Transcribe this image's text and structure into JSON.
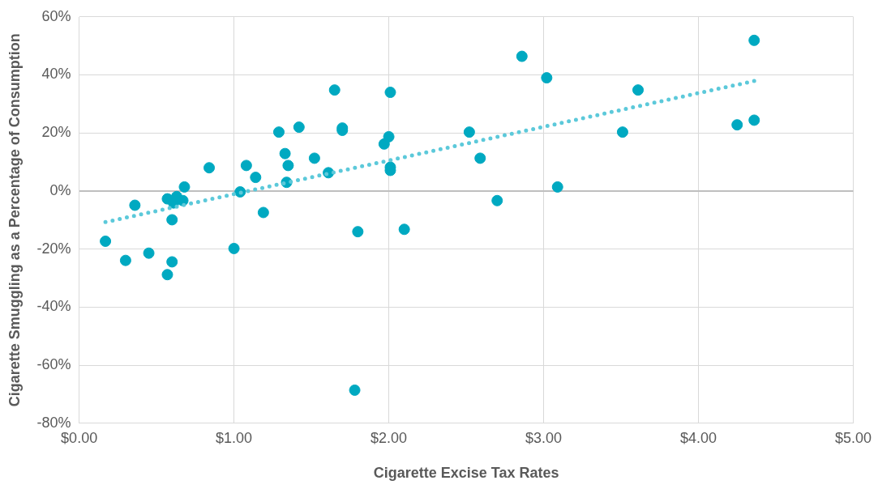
{
  "chart_data": {
    "type": "scatter",
    "xlabel": "Cigarette Excise Tax Rates",
    "ylabel": "Cigarette Smuggling as a Percentage of Consumption",
    "xlim": [
      0,
      5
    ],
    "xticks": [
      {
        "value": 0,
        "label": "$0.00"
      },
      {
        "value": 1,
        "label": "$1.00"
      },
      {
        "value": 2,
        "label": "$2.00"
      },
      {
        "value": 3,
        "label": "$3.00"
      },
      {
        "value": 4,
        "label": "$4.00"
      },
      {
        "value": 5,
        "label": "$5.00"
      }
    ],
    "ylim": [
      -80,
      60
    ],
    "yticks": [
      {
        "value": -80,
        "label": "-80%"
      },
      {
        "value": -60,
        "label": "-60%"
      },
      {
        "value": -40,
        "label": "-40%"
      },
      {
        "value": -20,
        "label": "-20%"
      },
      {
        "value": 0,
        "label": "0%"
      },
      {
        "value": 20,
        "label": "20%"
      },
      {
        "value": 40,
        "label": "40%"
      },
      {
        "value": 60,
        "label": "60%"
      }
    ],
    "grid": true,
    "series": [
      {
        "type": "scatter",
        "color": "#00a9c1",
        "marker": "circle",
        "x": [
          0.17,
          0.3,
          0.36,
          0.45,
          0.57,
          0.57,
          0.6,
          0.6,
          0.61,
          0.63,
          0.67,
          0.68,
          0.84,
          1.0,
          1.04,
          1.08,
          1.14,
          1.19,
          1.29,
          1.33,
          1.34,
          1.35,
          1.42,
          1.52,
          1.61,
          1.65,
          1.7,
          1.7,
          1.8,
          1.78,
          1.97,
          2.0,
          2.01,
          2.01,
          2.01,
          2.1,
          2.52,
          2.59,
          2.7,
          2.86,
          3.02,
          3.09,
          3.51,
          3.61,
          4.25,
          4.36,
          4.36
        ],
        "values": [
          -17.3,
          -23.9,
          -4.9,
          -21.4,
          -2.7,
          -28.8,
          -24.4,
          -9.9,
          -4.1,
          -1.9,
          -3.3,
          1.4,
          8.0,
          -19.8,
          -0.3,
          8.8,
          4.7,
          -7.4,
          20.3,
          12.9,
          3.0,
          8.8,
          22.0,
          11.3,
          6.3,
          34.8,
          21.7,
          20.9,
          -14.0,
          -68.6,
          16.2,
          18.7,
          34.0,
          8.2,
          7.1,
          -13.2,
          20.3,
          11.3,
          -3.3,
          46.4,
          39.0,
          1.4,
          20.3,
          34.8,
          22.8,
          24.4,
          51.9
        ]
      },
      {
        "type": "line",
        "color": "#5cc9da",
        "line_style": "dotted",
        "marker": "none",
        "x": [
          0.17,
          4.36
        ],
        "values": [
          -10.7,
          37.9
        ]
      }
    ]
  }
}
